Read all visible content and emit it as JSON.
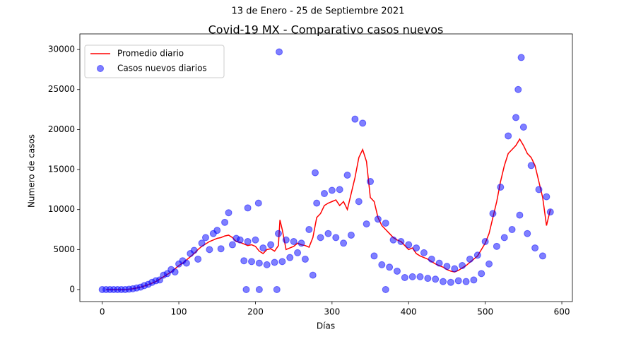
{
  "chart_data": {
    "type": "line",
    "suptitle": "13 de Enero - 25 de Septiembre 2021",
    "title": "Covid-19 MX - Comparativo casos nuevos",
    "xlabel": "Días",
    "ylabel": "Numero de casos",
    "xlim": [
      -29.2,
      613.8
    ],
    "ylim": [
      -1500,
      31950
    ],
    "xticks": [
      0,
      100,
      200,
      300,
      400,
      500,
      600
    ],
    "yticks": [
      0,
      5000,
      10000,
      15000,
      20000,
      25000,
      30000
    ],
    "legend": "upper left",
    "series": [
      {
        "name": "Promedio diario",
        "type": "line",
        "color": "#ff0000",
        "x": [
          5,
          10,
          15,
          20,
          25,
          30,
          35,
          40,
          45,
          50,
          55,
          60,
          65,
          70,
          75,
          80,
          85,
          90,
          95,
          100,
          105,
          110,
          115,
          120,
          125,
          130,
          135,
          140,
          145,
          150,
          155,
          160,
          165,
          170,
          175,
          180,
          185,
          190,
          195,
          200,
          205,
          210,
          215,
          220,
          225,
          230,
          232,
          235,
          240,
          245,
          250,
          255,
          260,
          265,
          270,
          275,
          280,
          285,
          290,
          295,
          300,
          305,
          310,
          315,
          320,
          325,
          330,
          335,
          340,
          345,
          350,
          355,
          360,
          365,
          370,
          375,
          380,
          385,
          390,
          395,
          400,
          405,
          410,
          415,
          420,
          425,
          430,
          435,
          440,
          445,
          450,
          455,
          460,
          465,
          470,
          475,
          480,
          485,
          490,
          495,
          500,
          505,
          510,
          515,
          520,
          525,
          530,
          535,
          540,
          545,
          550,
          555,
          560,
          565,
          570,
          575,
          580,
          585
        ],
        "y": [
          0,
          0,
          0,
          0,
          0,
          0,
          50,
          100,
          200,
          300,
          450,
          600,
          800,
          1000,
          1300,
          1600,
          1900,
          2200,
          2600,
          3000,
          3300,
          3700,
          4100,
          4500,
          5000,
          5400,
          5700,
          6000,
          6200,
          6400,
          6500,
          6700,
          6800,
          6500,
          6000,
          5900,
          5700,
          5500,
          5600,
          5400,
          4800,
          4500,
          5000,
          5100,
          4800,
          5500,
          8700,
          7500,
          5000,
          5200,
          5400,
          5800,
          5600,
          5500,
          5300,
          6500,
          9000,
          9500,
          10500,
          10800,
          11000,
          11200,
          10500,
          11000,
          10000,
          12000,
          14000,
          16500,
          17500,
          16000,
          11500,
          11000,
          9000,
          8000,
          7500,
          7000,
          6500,
          6200,
          6000,
          5500,
          5000,
          5200,
          4500,
          4200,
          4000,
          3800,
          3500,
          3200,
          3000,
          2800,
          2500,
          2300,
          2200,
          2400,
          2700,
          3000,
          3400,
          3800,
          4200,
          5000,
          5800,
          7000,
          9000,
          11000,
          13500,
          15500,
          17000,
          17500,
          18000,
          18800,
          18000,
          17000,
          16500,
          15500,
          13500,
          11500,
          8000,
          10000
        ]
      },
      {
        "name": "Casos nuevos diarios",
        "type": "scatter",
        "color": "#0000ff",
        "x": [
          0,
          5,
          10,
          15,
          20,
          25,
          30,
          35,
          40,
          45,
          50,
          55,
          60,
          65,
          70,
          75,
          80,
          85,
          90,
          95,
          100,
          105,
          110,
          115,
          120,
          125,
          130,
          135,
          140,
          145,
          150,
          155,
          160,
          165,
          170,
          175,
          180,
          185,
          190,
          195,
          200,
          205,
          210,
          215,
          220,
          225,
          230,
          235,
          240,
          245,
          250,
          255,
          260,
          265,
          270,
          275,
          280,
          285,
          290,
          295,
          300,
          305,
          310,
          315,
          320,
          325,
          330,
          335,
          340,
          345,
          350,
          355,
          360,
          365,
          370,
          375,
          380,
          385,
          390,
          395,
          400,
          405,
          410,
          415,
          420,
          425,
          430,
          435,
          440,
          445,
          450,
          455,
          460,
          465,
          470,
          475,
          480,
          485,
          490,
          495,
          500,
          505,
          510,
          515,
          520,
          525,
          530,
          535,
          540,
          545,
          550,
          555,
          560,
          565,
          570,
          575,
          580,
          585,
          231,
          188,
          205,
          228,
          370,
          190,
          204,
          278,
          547,
          543
        ],
        "y": [
          0,
          0,
          0,
          0,
          0,
          0,
          0,
          50,
          100,
          200,
          300,
          500,
          650,
          900,
          1100,
          1200,
          1800,
          2000,
          2500,
          2200,
          3200,
          3600,
          3300,
          4500,
          4900,
          3800,
          5800,
          6500,
          5000,
          7000,
          7400,
          5100,
          8400,
          9600,
          5600,
          6400,
          6200,
          3600,
          6000,
          3500,
          6200,
          3300,
          5200,
          3100,
          5600,
          3400,
          7000,
          3500,
          6200,
          4000,
          6000,
          4600,
          5800,
          3800,
          7500,
          1800,
          10800,
          6500,
          12000,
          7000,
          12400,
          6500,
          12500,
          5800,
          14300,
          6800,
          21300,
          11000,
          20800,
          8200,
          13500,
          4200,
          8800,
          3100,
          8300,
          2800,
          6200,
          2300,
          6000,
          1500,
          5600,
          1600,
          5200,
          1600,
          4600,
          1400,
          3800,
          1300,
          3300,
          1000,
          2900,
          900,
          2600,
          1100,
          3000,
          1000,
          3800,
          1200,
          4300,
          2000,
          6000,
          3200,
          9500,
          5400,
          12800,
          6500,
          19200,
          7500,
          21500,
          9300,
          20300,
          7000,
          15500,
          5200,
          12500,
          4200,
          11600,
          9700,
          29700,
          0,
          0,
          0,
          0,
          10200,
          10800,
          14600,
          29000,
          25000
        ]
      }
    ]
  }
}
